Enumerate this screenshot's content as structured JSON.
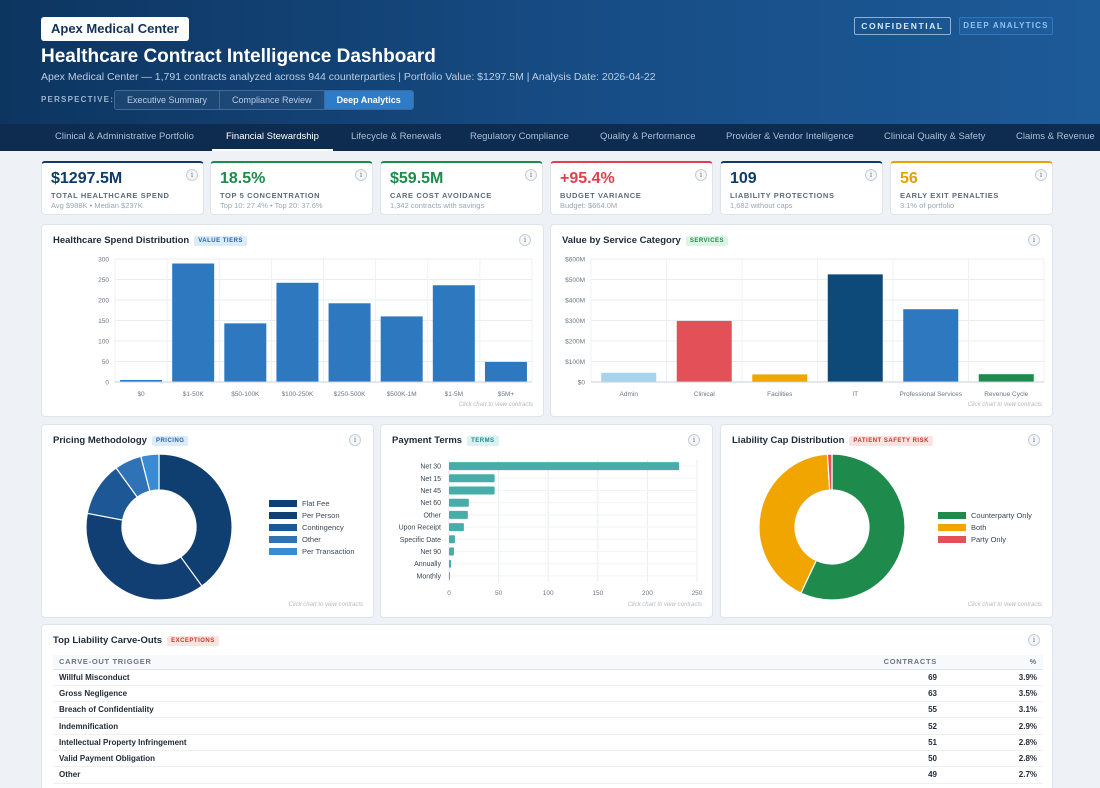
{
  "header": {
    "brand": "Apex Medical Center",
    "title": "Healthcare Contract Intelligence Dashboard",
    "subtitle": "Apex Medical Center — 1,791 contracts analyzed across 944 counterparties | Portfolio Value: $1297.5M | Analysis Date: 2026-04-22",
    "perspective_label": "PERSPECTIVE:",
    "perspectives": [
      "Executive Summary",
      "Compliance Review",
      "Deep Analytics"
    ],
    "active_perspective": "Deep Analytics",
    "badge_confidential": "CONFIDENTIAL",
    "badge_mode": "DEEP ANALYTICS"
  },
  "nav": {
    "tabs": [
      "Clinical & Administrative Portfolio",
      "Financial Stewardship",
      "Lifecycle & Renewals",
      "Regulatory Compliance",
      "Quality & Performance",
      "Provider & Vendor Intelligence",
      "Clinical Quality & Safety",
      "Claims & Revenue"
    ],
    "active": "Financial Stewardship"
  },
  "kpis": [
    {
      "value": "$1297.5M",
      "label": "TOTAL HEALTHCARE SPEND",
      "sub": "Avg $988K • Median $237K",
      "color": "#0f3b6a"
    },
    {
      "value": "18.5%",
      "label": "TOP 5 CONCENTRATION",
      "sub": "Top 10: 27.4% • Top 20: 37.6%",
      "color": "#1e8a4c"
    },
    {
      "value": "$59.5M",
      "label": "CARE COST AVOIDANCE",
      "sub": "1,342 contracts with savings",
      "color": "#1e8a4c"
    },
    {
      "value": "+95.4%",
      "label": "BUDGET VARIANCE",
      "sub": "Budget: $664.0M",
      "color": "#e0404b"
    },
    {
      "value": "109",
      "label": "LIABILITY PROTECTIONS",
      "sub": "1,682 without caps",
      "color": "#0f3b6a"
    },
    {
      "value": "56",
      "label": "EARLY EXIT PENALTIES",
      "sub": "3.1% of portfolio",
      "color": "#e5a100"
    }
  ],
  "info_glyph": "i",
  "spend_chart": {
    "title": "Healthcare Spend Distribution",
    "tag": "VALUE TIERS",
    "hint": "Click chart to view contracts"
  },
  "service_chart": {
    "title": "Value by Service Category",
    "tag": "SERVICES",
    "hint": "Click chart to view contracts"
  },
  "pricing_chart": {
    "title": "Pricing Methodology",
    "tag": "PRICING",
    "hint": "Click chart to view contracts"
  },
  "terms_chart": {
    "title": "Payment Terms",
    "tag": "TERMS",
    "hint": "Click chart to view contracts"
  },
  "liability_chart": {
    "title": "Liability Cap Distribution",
    "tag": "PATIENT SAFETY RISK",
    "hint": "Click chart to view contracts"
  },
  "chart_data": [
    {
      "type": "bar",
      "id": "spend",
      "categories": [
        "$0",
        "$1-50K",
        "$50-100K",
        "$100-250K",
        "$250-500K",
        "$500K-1M",
        "$1-5M",
        "$5M+"
      ],
      "values": [
        5,
        289,
        143,
        242,
        192,
        160,
        236,
        49
      ],
      "ylim": [
        0,
        300
      ],
      "yticks": [
        "0",
        "50",
        "100",
        "150",
        "200",
        "250",
        "300"
      ],
      "color": "#2e78c0",
      "grid": true
    },
    {
      "type": "bar",
      "id": "service",
      "categories": [
        "Admin",
        "Clinical",
        "Facilities",
        "IT",
        "Professional Services",
        "Revenue Cycle"
      ],
      "values": [
        45,
        298,
        37,
        525,
        355,
        38
      ],
      "ylim": [
        0,
        600
      ],
      "yticks": [
        "$0",
        "$100M",
        "$200M",
        "$300M",
        "$400M",
        "$500M",
        "$600M"
      ],
      "colors": [
        "#a7d3ec",
        "#e35058",
        "#f0a500",
        "#0d4a7a",
        "#2e78c0",
        "#1e8a4c"
      ],
      "grid": true
    },
    {
      "type": "pie",
      "id": "pricing",
      "donut": true,
      "labels": [
        "Flat Fee",
        "Per Person",
        "Contingency",
        "Other",
        "Per Transaction"
      ],
      "values": [
        40,
        38,
        12,
        6,
        4
      ],
      "colors": [
        "#0e3f70",
        "#123f73",
        "#1e5795",
        "#2f72b6",
        "#3b8bd0"
      ],
      "legend": "right"
    },
    {
      "type": "bar",
      "orientation": "horizontal",
      "id": "terms",
      "categories": [
        "Net 30",
        "Net 15",
        "Net 45",
        "Net 60",
        "Other",
        "Upon Receipt",
        "Specific Date",
        "Net 90",
        "Annually",
        "Monthly"
      ],
      "values": [
        232,
        46,
        46,
        20,
        19,
        15,
        6,
        5,
        2,
        1
      ],
      "xlim": [
        0,
        250
      ],
      "xticks": [
        "0",
        "50",
        "100",
        "150",
        "200",
        "250"
      ],
      "color": "#46ada8",
      "grid": true
    },
    {
      "type": "pie",
      "id": "liability",
      "donut": true,
      "labels": [
        "Counterparty Only",
        "Both",
        "Party Only"
      ],
      "values": [
        57,
        42,
        1
      ],
      "colors": [
        "#1e8a4c",
        "#f0a500",
        "#e35058"
      ],
      "legend": "right"
    }
  ],
  "carveouts": {
    "title": "Top Liability Carve-Outs",
    "tag": "EXCEPTIONS",
    "columns": [
      "CARVE-OUT TRIGGER",
      "CONTRACTS",
      "%"
    ],
    "rows": [
      [
        "Willful Misconduct",
        "69",
        "3.9%"
      ],
      [
        "Gross Negligence",
        "63",
        "3.5%"
      ],
      [
        "Breach of Confidentiality",
        "55",
        "3.1%"
      ],
      [
        "Indemnification",
        "52",
        "2.9%"
      ],
      [
        "Intellectual Property Infringement",
        "51",
        "2.8%"
      ],
      [
        "Valid Payment Obligation",
        "50",
        "2.8%"
      ],
      [
        "Other",
        "49",
        "2.7%"
      ]
    ]
  }
}
